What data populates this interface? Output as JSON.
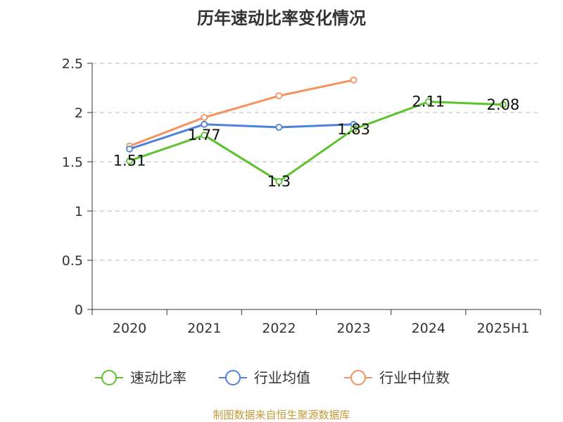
{
  "chart_data": {
    "type": "line",
    "title": "历年速动比率变化情况",
    "categories": [
      "2020",
      "2021",
      "2022",
      "2023",
      "2024",
      "2025H1"
    ],
    "ylim": [
      0,
      2.5
    ],
    "yticks": [
      "0",
      "0.5",
      "1",
      "1.5",
      "2",
      "2.5"
    ],
    "grid": true,
    "legend_position": "bottom",
    "series": [
      {
        "name": "速动比率",
        "color": "#5cc22e",
        "values": [
          1.51,
          1.77,
          1.3,
          1.83,
          2.11,
          2.08
        ],
        "labels": [
          "1.51",
          "1.77",
          "1.3",
          "1.83",
          "2.11",
          "2.08"
        ]
      },
      {
        "name": "行业均值",
        "color": "#4f81d9",
        "values": [
          1.63,
          1.88,
          1.85,
          1.88,
          null,
          null
        ]
      },
      {
        "name": "行业中位数",
        "color": "#f5925e",
        "values": [
          1.66,
          1.95,
          2.17,
          2.33,
          null,
          null
        ]
      }
    ],
    "source": "制图数据来自恒生聚源数据库",
    "source_color": "#c39a3c"
  }
}
